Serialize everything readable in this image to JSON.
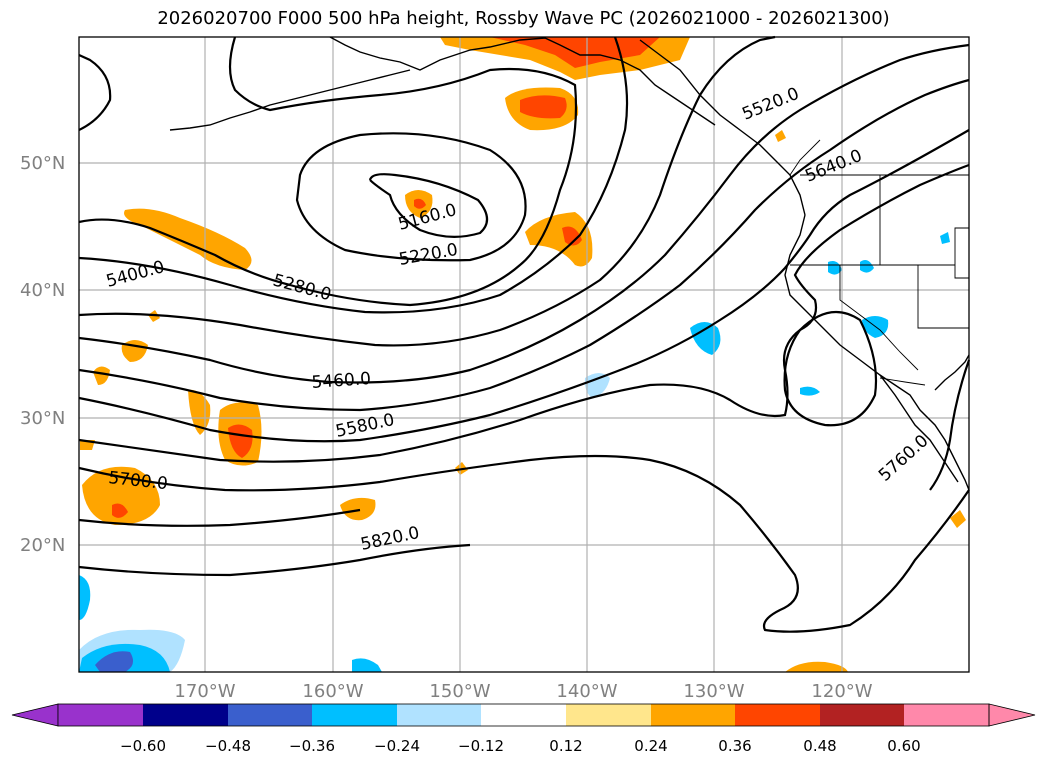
{
  "title": "2026020700 F000 500 hPa height, Rossby Wave PC (2026021000 - 2026021300)",
  "map": {
    "projection": "PlateCarree",
    "lon_range": [
      -180,
      -110
    ],
    "lat_range": [
      10,
      60
    ],
    "lat_labels": [
      "50°N",
      "40°N",
      "30°N",
      "20°N"
    ],
    "lon_labels": [
      "170°W",
      "160°W",
      "150°W",
      "140°W",
      "130°W",
      "120°W"
    ],
    "gridlines": true,
    "contour_variable": "500 hPa geopotential height",
    "contour_labels": [
      "5520.0",
      "5640.0",
      "5160.0",
      "5220.0",
      "5400.0",
      "5280.0",
      "5460.0",
      "5580.0",
      "5700.0",
      "5820.0",
      "5760.0"
    ],
    "shaded_variable": "Rossby Wave PC"
  },
  "colorbar": {
    "extend": "both",
    "levels": [
      -0.72,
      -0.6,
      -0.48,
      -0.36,
      -0.24,
      -0.12,
      0.12,
      0.24,
      0.36,
      0.48,
      0.6,
      0.72
    ],
    "tick_labels": [
      "−0.60",
      "−0.48",
      "−0.36",
      "−0.24",
      "−0.12",
      "0.12",
      "0.24",
      "0.36",
      "0.48",
      "0.60"
    ],
    "colors": [
      "#9932cc",
      "#00008b",
      "#3a5fcd",
      "#00bfff",
      "#b0e2ff",
      "#ffffff",
      "#ffe68c",
      "#ffa500",
      "#ff4500",
      "#b22222",
      "#ff88aa"
    ]
  }
}
